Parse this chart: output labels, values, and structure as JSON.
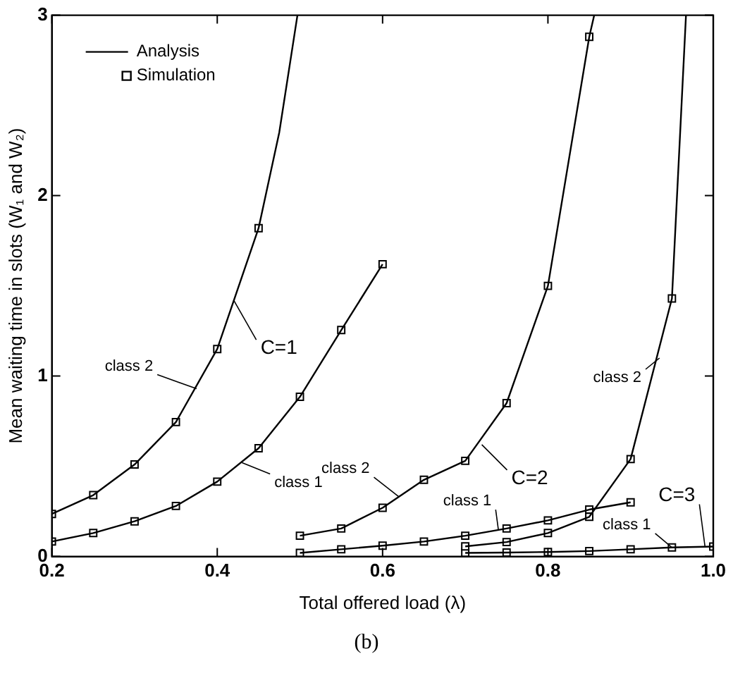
{
  "chart_data": {
    "type": "line",
    "xlabel": "Total offered load (λ)",
    "ylabel": "Mean waiting time in slots (W₁ and W₂)",
    "xlim": [
      0.2,
      1.0
    ],
    "xticks": [
      0.2,
      0.4,
      0.6,
      0.8,
      {
        "value": 1,
        "label": "1.0"
      }
    ],
    "ylim": [
      0,
      3
    ],
    "yticks": [
      0,
      1,
      2,
      3
    ],
    "grid": false,
    "legend": "top left",
    "series": [
      {
        "name": "Analysis",
        "type": "line",
        "marker": "none",
        "line_style": "solid",
        "color": "#000000",
        "x": [
          0.2,
          0.25,
          0.3,
          0.35,
          0.4,
          0.45,
          0.475,
          0.497
        ],
        "values": [
          0.236,
          0.34,
          0.51,
          0.745,
          1.15,
          1.82,
          2.35,
          3
        ]
      },
      {
        "type": "line",
        "marker": "none",
        "line_style": "solid",
        "color": "#000000",
        "x": [
          0.2,
          0.25,
          0.3,
          0.35,
          0.4,
          0.45,
          0.5,
          0.55,
          0.6
        ],
        "values": [
          0.083,
          0.13,
          0.195,
          0.28,
          0.415,
          0.6,
          0.885,
          1.255,
          1.62
        ]
      },
      {
        "type": "line",
        "marker": "none",
        "line_style": "solid",
        "color": "#000000",
        "x": [
          0.5,
          0.55,
          0.6,
          0.65,
          0.7,
          0.75,
          0.8,
          0.85,
          0.856
        ],
        "values": [
          0.115,
          0.155,
          0.27,
          0.425,
          0.53,
          0.85,
          1.5,
          2.88,
          3
        ]
      },
      {
        "type": "line",
        "marker": "none",
        "line_style": "solid",
        "color": "#000000",
        "x": [
          0.5,
          0.55,
          0.6,
          0.65,
          0.7,
          0.75,
          0.8,
          0.85,
          0.9
        ],
        "values": [
          0.02,
          0.04,
          0.06,
          0.083,
          0.115,
          0.155,
          0.2,
          0.26,
          0.3
        ]
      },
      {
        "type": "line",
        "marker": "none",
        "line_style": "solid",
        "color": "#000000",
        "x": [
          0.7,
          0.75,
          0.8,
          0.85,
          0.9,
          0.95,
          0.967
        ],
        "values": [
          0.056,
          0.08,
          0.13,
          0.22,
          0.54,
          1.43,
          3
        ]
      },
      {
        "type": "line",
        "marker": "none",
        "line_style": "solid",
        "color": "#000000",
        "x": [
          0.7,
          0.75,
          0.8,
          0.85,
          0.9,
          0.95,
          1.0
        ],
        "values": [
          0.02,
          0.022,
          0.025,
          0.03,
          0.04,
          0.05,
          0.055
        ]
      },
      {
        "name": "Simulation",
        "type": "scatter",
        "marker": "square",
        "color": "#000000",
        "x": [
          0.2,
          0.25,
          0.3,
          0.35,
          0.4,
          0.45
        ],
        "values": [
          0.236,
          0.34,
          0.51,
          0.745,
          1.15,
          1.82
        ]
      },
      {
        "type": "scatter",
        "marker": "square",
        "color": "#000000",
        "x": [
          0.2,
          0.25,
          0.3,
          0.35,
          0.4,
          0.45,
          0.5,
          0.55,
          0.6
        ],
        "values": [
          0.083,
          0.13,
          0.195,
          0.28,
          0.415,
          0.6,
          0.885,
          1.255,
          1.62
        ]
      },
      {
        "type": "scatter",
        "marker": "square",
        "color": "#000000",
        "x": [
          0.5,
          0.55,
          0.6,
          0.65,
          0.7,
          0.75,
          0.8,
          0.85
        ],
        "values": [
          0.115,
          0.155,
          0.27,
          0.425,
          0.53,
          0.85,
          1.5,
          2.88
        ]
      },
      {
        "type": "scatter",
        "marker": "square",
        "color": "#000000",
        "x": [
          0.5,
          0.55,
          0.6,
          0.65,
          0.7,
          0.75,
          0.8,
          0.85,
          0.9
        ],
        "values": [
          0.02,
          0.04,
          0.06,
          0.083,
          0.115,
          0.155,
          0.2,
          0.26,
          0.3
        ]
      },
      {
        "type": "scatter",
        "marker": "square",
        "color": "#000000",
        "x": [
          0.7,
          0.75,
          0.8,
          0.85,
          0.9,
          0.95
        ],
        "values": [
          0.056,
          0.08,
          0.13,
          0.22,
          0.54,
          1.43
        ]
      },
      {
        "type": "scatter",
        "marker": "square",
        "color": "#000000",
        "x": [
          0.7,
          0.75,
          0.8,
          0.85,
          0.9,
          0.95,
          1.0
        ],
        "values": [
          0.02,
          0.022,
          0.025,
          0.03,
          0.04,
          0.05,
          0.055
        ]
      }
    ],
    "annotations": [
      {
        "text": "class 2",
        "x": 0.375,
        "y": 0.93
      },
      {
        "text": "C=1",
        "x": 0.42,
        "y": 1.42
      },
      {
        "text": "class 1",
        "x": 0.43,
        "y": 0.52
      },
      {
        "text": "class 2",
        "x": 0.62,
        "y": 0.33
      },
      {
        "text": "C=2",
        "x": 0.72,
        "y": 0.62
      },
      {
        "text": "class 1",
        "x": 0.74,
        "y": 0.15
      },
      {
        "text": "class 2",
        "x": 0.935,
        "y": 1.1
      },
      {
        "text": "C=3",
        "x": 0.99,
        "y": 0.055
      },
      {
        "text": "class 1",
        "x": 0.95,
        "y": 0.05
      },
      "(b)"
    ]
  }
}
